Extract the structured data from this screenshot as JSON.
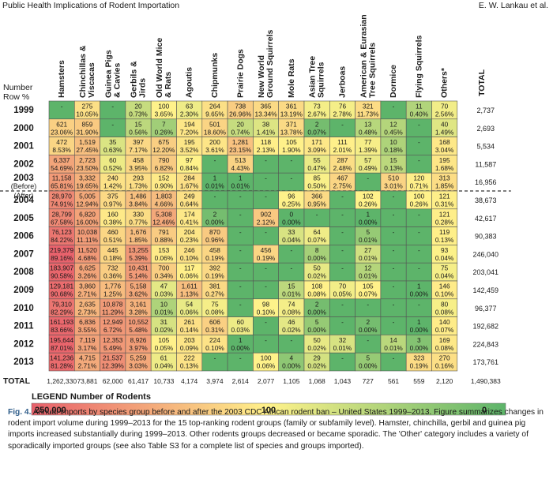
{
  "header": {
    "left": "Public Health Implications of Rodent Importation",
    "right": "E. W. Lankau et al."
  },
  "chart_data": {
    "type": "heatmap",
    "corner_label_1": "Number",
    "corner_label_2": "Row %",
    "columns": [
      "Hamsters",
      "Chinchillas & Viscacas",
      "Guinea Pigs & Cavies",
      "Gerbils & Jirds",
      "Old World Mice & Rats",
      "Agoutis",
      "Chipmunks",
      "Prairie Dogs",
      "New World Ground Squirrels",
      "Mole Rats",
      "Asian Tree Squirrels",
      "Jerboas",
      "American & Eurasian Tree Squirrels",
      "Dormice",
      "Flying Squirrels",
      "Others*"
    ],
    "total_col_label": "TOTAL",
    "after_marker": "(After)",
    "rows": [
      {
        "label": "1999",
        "sub": "",
        "totals": "2,737",
        "cells": [
          [
            "-",
            ""
          ],
          [
            "275",
            "10.05%"
          ],
          [
            "-",
            ""
          ],
          [
            "20",
            "0.73%"
          ],
          [
            "100",
            "3.65%"
          ],
          [
            "63",
            "2.30%"
          ],
          [
            "264",
            "9.65%"
          ],
          [
            "738",
            "26.96%"
          ],
          [
            "365",
            "13.34%"
          ],
          [
            "361",
            "13.19%"
          ],
          [
            "73",
            "2.67%"
          ],
          [
            "76",
            "2.78%"
          ],
          [
            "321",
            "11.73%"
          ],
          [
            "-",
            ""
          ],
          [
            "11",
            "0.40%"
          ],
          [
            "70",
            "2.56%"
          ]
        ]
      },
      {
        "label": "2000",
        "sub": "",
        "totals": "2,693",
        "cells": [
          [
            "621",
            "23.06%"
          ],
          [
            "859",
            "31.90%"
          ],
          [
            "-",
            ""
          ],
          [
            "15",
            "0.56%"
          ],
          [
            "7",
            "0.26%"
          ],
          [
            "194",
            "7.20%"
          ],
          [
            "501",
            "18.60%"
          ],
          [
            "20",
            "0.74%"
          ],
          [
            "38",
            "1.41%"
          ],
          [
            "371",
            "13.78%"
          ],
          [
            "2",
            "0.07%"
          ],
          [
            "-",
            ""
          ],
          [
            "13",
            "0.48%"
          ],
          [
            "12",
            "0.45%"
          ],
          [
            "-",
            ""
          ],
          [
            "40",
            "1.49%"
          ]
        ]
      },
      {
        "label": "2001",
        "sub": "",
        "totals": "5,534",
        "cells": [
          [
            "472",
            "8.53%"
          ],
          [
            "1,519",
            "27.45%"
          ],
          [
            "35",
            "0.63%"
          ],
          [
            "397",
            "7.17%"
          ],
          [
            "675",
            "12.20%"
          ],
          [
            "195",
            "3.52%"
          ],
          [
            "200",
            "3.61%"
          ],
          [
            "1,281",
            "23.15%"
          ],
          [
            "118",
            "2.13%"
          ],
          [
            "105",
            "1.90%"
          ],
          [
            "171",
            "3.09%"
          ],
          [
            "111",
            "2.01%"
          ],
          [
            "77",
            "1.39%"
          ],
          [
            "10",
            "0.18%"
          ],
          [
            "-",
            ""
          ],
          [
            "168",
            "3.04%"
          ]
        ]
      },
      {
        "label": "2002",
        "sub": "",
        "totals": "11,587",
        "cells": [
          [
            "6,337",
            "54.69%"
          ],
          [
            "2,723",
            "23.50%"
          ],
          [
            "60",
            "0.52%"
          ],
          [
            "458",
            "3.95%"
          ],
          [
            "790",
            "6.82%"
          ],
          [
            "97",
            "0.84%"
          ],
          [
            "-",
            ""
          ],
          [
            "513",
            "4.43%"
          ],
          [
            "-",
            ""
          ],
          [
            "-",
            ""
          ],
          [
            "55",
            "0.47%"
          ],
          [
            "287",
            "2.48%"
          ],
          [
            "57",
            "0.49%"
          ],
          [
            "15",
            "0.13%"
          ],
          [
            "-",
            ""
          ],
          [
            "195",
            "1.68%"
          ]
        ]
      },
      {
        "label": "2003",
        "sub": "(Before)",
        "totals": "16,956",
        "cells": [
          [
            "11,158",
            "65.81%"
          ],
          [
            "3,332",
            "19.65%"
          ],
          [
            "240",
            "1.42%"
          ],
          [
            "293",
            "1.73%"
          ],
          [
            "152",
            "0.90%"
          ],
          [
            "284",
            "1.67%"
          ],
          [
            "1",
            "0.01%"
          ],
          [
            "1",
            "0.01%"
          ],
          [
            "-",
            ""
          ],
          [
            "-",
            ""
          ],
          [
            "85",
            "0.50%"
          ],
          [
            "467",
            "2.75%"
          ],
          [
            "-",
            ""
          ],
          [
            "510",
            "3.01%"
          ],
          [
            "120",
            "0.71%"
          ],
          [
            "313",
            "1.85%"
          ]
        ]
      },
      {
        "label": "2004",
        "sub": "",
        "totals": "38,673",
        "cells": [
          [
            "28,970",
            "74.91%"
          ],
          [
            "5,005",
            "12.94%"
          ],
          [
            "375",
            "0.97%"
          ],
          [
            "1,486",
            "3.84%"
          ],
          [
            "1,803",
            "4.66%"
          ],
          [
            "249",
            "0.64%"
          ],
          [
            "-",
            ""
          ],
          [
            "-",
            ""
          ],
          [
            "-",
            ""
          ],
          [
            "96",
            "0.25%"
          ],
          [
            "366",
            "0.95%"
          ],
          [
            "-",
            ""
          ],
          [
            "102",
            "0.26%"
          ],
          [
            "-",
            ""
          ],
          [
            "100",
            "0.26%"
          ],
          [
            "121",
            "0.31%"
          ]
        ]
      },
      {
        "label": "2005",
        "sub": "",
        "totals": "42,617",
        "cells": [
          [
            "28,799",
            "67.58%"
          ],
          [
            "6,820",
            "16.00%"
          ],
          [
            "160",
            "0.38%"
          ],
          [
            "330",
            "0.77%"
          ],
          [
            "5,308",
            "12.46%"
          ],
          [
            "174",
            "0.41%"
          ],
          [
            "2",
            "0.00%"
          ],
          [
            "-",
            ""
          ],
          [
            "902",
            "2.12%"
          ],
          [
            "0",
            "0.00%"
          ],
          [
            "-",
            ""
          ],
          [
            "-",
            ""
          ],
          [
            "1",
            "0.00%"
          ],
          [
            "-",
            ""
          ],
          [
            "-",
            ""
          ],
          [
            "121",
            "0.28%"
          ]
        ]
      },
      {
        "label": "2006",
        "sub": "",
        "totals": "90,383",
        "cells": [
          [
            "76,123",
            "84.22%"
          ],
          [
            "10,038",
            "11.11%"
          ],
          [
            "460",
            "0.51%"
          ],
          [
            "1,676",
            "1.85%"
          ],
          [
            "791",
            "0.88%"
          ],
          [
            "204",
            "0.23%"
          ],
          [
            "870",
            "0.96%"
          ],
          [
            "-",
            ""
          ],
          [
            "-",
            ""
          ],
          [
            "33",
            "0.04%"
          ],
          [
            "64",
            "0.07%"
          ],
          [
            "-",
            ""
          ],
          [
            "5",
            "0.01%"
          ],
          [
            "-",
            ""
          ],
          [
            "-",
            ""
          ],
          [
            "119",
            "0.13%"
          ]
        ]
      },
      {
        "label": "2007",
        "sub": "",
        "totals": "246,040",
        "cells": [
          [
            "219,379",
            "89.16%"
          ],
          [
            "11,520",
            "4.68%"
          ],
          [
            "445",
            "0.18%"
          ],
          [
            "13,255",
            "5.39%"
          ],
          [
            "153",
            "0.06%"
          ],
          [
            "246",
            "0.10%"
          ],
          [
            "458",
            "0.19%"
          ],
          [
            "-",
            ""
          ],
          [
            "456",
            "0.19%"
          ],
          [
            "-",
            ""
          ],
          [
            "8",
            "0.00%"
          ],
          [
            "-",
            ""
          ],
          [
            "27",
            "0.01%"
          ],
          [
            "-",
            ""
          ],
          [
            "-",
            ""
          ],
          [
            "93",
            "0.04%"
          ]
        ]
      },
      {
        "label": "2008",
        "sub": "",
        "totals": "203,041",
        "cells": [
          [
            "183,907",
            "90.58%"
          ],
          [
            "6,625",
            "3.26%"
          ],
          [
            "732",
            "0.36%"
          ],
          [
            "10,431",
            "5.14%"
          ],
          [
            "700",
            "0.34%"
          ],
          [
            "117",
            "0.06%"
          ],
          [
            "392",
            "0.19%"
          ],
          [
            "-",
            ""
          ],
          [
            "-",
            ""
          ],
          [
            "-",
            ""
          ],
          [
            "50",
            "0.02%"
          ],
          [
            "-",
            ""
          ],
          [
            "12",
            "0.01%"
          ],
          [
            "-",
            ""
          ],
          [
            "-",
            ""
          ],
          [
            "75",
            "0.04%"
          ]
        ]
      },
      {
        "label": "2009",
        "sub": "",
        "totals": "142,459",
        "cells": [
          [
            "129,181",
            "90.68%"
          ],
          [
            "3,860",
            "2.71%"
          ],
          [
            "1,776",
            "1.25%"
          ],
          [
            "5,158",
            "3.62%"
          ],
          [
            "47",
            "0.03%"
          ],
          [
            "1,611",
            "1.13%"
          ],
          [
            "381",
            "0.27%"
          ],
          [
            "-",
            ""
          ],
          [
            "-",
            ""
          ],
          [
            "15",
            "0.01%"
          ],
          [
            "108",
            "0.08%"
          ],
          [
            "70",
            "0.05%"
          ],
          [
            "105",
            "0.07%"
          ],
          [
            "-",
            ""
          ],
          [
            "1",
            "0.00%"
          ],
          [
            "146",
            "0.10%"
          ]
        ]
      },
      {
        "label": "2010",
        "sub": "",
        "totals": "96,377",
        "cells": [
          [
            "79,310",
            "82.29%"
          ],
          [
            "2,635",
            "2.73%"
          ],
          [
            "10,878",
            "11.29%"
          ],
          [
            "3,161",
            "3.28%"
          ],
          [
            "10",
            "0.01%"
          ],
          [
            "54",
            "0.06%"
          ],
          [
            "75",
            "0.08%"
          ],
          [
            "-",
            ""
          ],
          [
            "98",
            "0.10%"
          ],
          [
            "74",
            "0.08%"
          ],
          [
            "2",
            "0.00%"
          ],
          [
            "-",
            ""
          ],
          [
            "-",
            ""
          ],
          [
            "-",
            ""
          ],
          [
            "-",
            ""
          ],
          [
            "80",
            "0.08%"
          ]
        ]
      },
      {
        "label": "2011",
        "sub": "",
        "totals": "192,682",
        "cells": [
          [
            "161,193",
            "83.66%"
          ],
          [
            "6,836",
            "3.55%"
          ],
          [
            "12,949",
            "6.72%"
          ],
          [
            "10,552",
            "5.48%"
          ],
          [
            "31",
            "0.02%"
          ],
          [
            "261",
            "0.14%"
          ],
          [
            "606",
            "0.31%"
          ],
          [
            "60",
            "0.03%"
          ],
          [
            "-",
            ""
          ],
          [
            "46",
            "0.02%"
          ],
          [
            "5",
            "0.00%"
          ],
          [
            "-",
            ""
          ],
          [
            "2",
            "0.00%"
          ],
          [
            "-",
            ""
          ],
          [
            "1",
            "0.00%"
          ],
          [
            "140",
            "0.07%"
          ]
        ]
      },
      {
        "label": "2012",
        "sub": "",
        "totals": "224,843",
        "cells": [
          [
            "195,644",
            "87.01%"
          ],
          [
            "7,119",
            "3.17%"
          ],
          [
            "12,353",
            "5.49%"
          ],
          [
            "8,926",
            "3.97%"
          ],
          [
            "105",
            "0.05%"
          ],
          [
            "203",
            "0.09%"
          ],
          [
            "224",
            "0.10%"
          ],
          [
            "1",
            "0.00%"
          ],
          [
            "-",
            ""
          ],
          [
            "-",
            ""
          ],
          [
            "50",
            "0.02%"
          ],
          [
            "32",
            "0.01%"
          ],
          [
            "-",
            ""
          ],
          [
            "14",
            "0.01%"
          ],
          [
            "3",
            "0.00%"
          ],
          [
            "169",
            "0.08%"
          ]
        ]
      },
      {
        "label": "2013",
        "sub": "",
        "totals": "173,761",
        "cells": [
          [
            "141,236",
            "81.28%"
          ],
          [
            "4,715",
            "2.71%"
          ],
          [
            "21,537",
            "12.39%"
          ],
          [
            "5,259",
            "3.03%"
          ],
          [
            "61",
            "0.04%"
          ],
          [
            "222",
            "0.13%"
          ],
          [
            "-",
            ""
          ],
          [
            "-",
            ""
          ],
          [
            "100",
            "0.06%"
          ],
          [
            "4",
            "0.00%"
          ],
          [
            "29",
            "0.02%"
          ],
          [
            "-",
            ""
          ],
          [
            "5",
            "0.00%"
          ],
          [
            "-",
            ""
          ],
          [
            "323",
            "0.19%"
          ],
          [
            "270",
            "0.16%"
          ]
        ]
      }
    ],
    "total_row": {
      "label": "TOTAL",
      "values": [
        "1,262,330",
        "73,881",
        "62,000",
        "61,417",
        "10,733",
        "4,174",
        "3,974",
        "2,614",
        "2,077",
        "1,105",
        "1,068",
        "1,043",
        "727",
        "561",
        "559",
        "2,120"
      ],
      "grand": "1,490,383"
    },
    "legend": {
      "title": "LEGEND  Number of Rodents",
      "min_label": "250,000",
      "mid_label": "100",
      "max_label": "0"
    },
    "colors": {
      "high": "#e8606b",
      "mid": "#fff28a",
      "low": "#5db46a",
      "border": "#555555",
      "empty": "#5db46a"
    }
  },
  "caption": {
    "label": "Fig. 4.",
    "text": "Annual imports by species group before and after the 2003 CDC African rodent ban – United States 1999–2013. Figure summarizes changes in rodent import volume during 1999–2013 for the 15 top-ranking rodent groups (family or subfamily level). Hamster, chinchilla, gerbil and guinea pig imports increased substantially during 1999–2013. Other rodents groups decreased or became sporadic. The 'Other' category includes a variety of sporadically imported groups (see also Table S3 for a complete list of species and groups imported)."
  }
}
